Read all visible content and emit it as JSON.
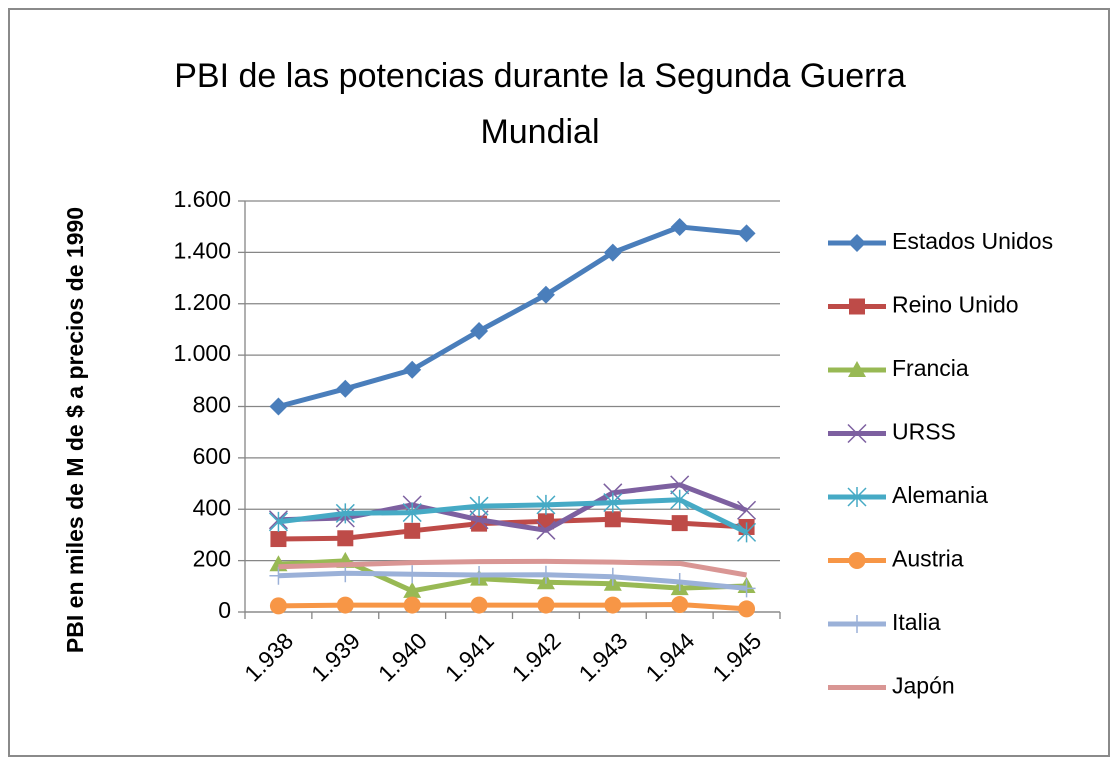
{
  "chart_data": {
    "type": "line",
    "title": "PBI de las potencias durante la Segunda Guerra Mundial",
    "y_label": "PBI en miles de M de $ a precios de 1990",
    "categories": [
      "1.938",
      "1.939",
      "1.940",
      "1.941",
      "1.942",
      "1.943",
      "1.944",
      "1.945"
    ],
    "ylim": [
      0,
      1600
    ],
    "yticks": [
      0,
      200,
      400,
      600,
      800,
      {
        "value": 1000,
        "label": "1.000"
      },
      {
        "value": 1200,
        "label": "1.200"
      },
      {
        "value": 1400,
        "label": "1.400"
      },
      {
        "value": 1600,
        "label": "1.600"
      }
    ],
    "grid": true,
    "legend": "right",
    "series": [
      {
        "name": "Estados Unidos",
        "color": "#4a7ebb",
        "marker": "diamond",
        "values": [
          800,
          869,
          943,
          1094,
          1235,
          1399,
          1499,
          1474
        ]
      },
      {
        "name": "Reino Unido",
        "color": "#be4b48",
        "marker": "square",
        "values": [
          284,
          287,
          316,
          344,
          353,
          361,
          346,
          331
        ]
      },
      {
        "name": "Francia",
        "color": "#98b954",
        "marker": "triangle",
        "values": [
          186,
          199,
          82,
          130,
          116,
          110,
          93,
          101
        ]
      },
      {
        "name": "URSS",
        "color": "#7d60a0",
        "marker": "x",
        "values": [
          359,
          366,
          417,
          359,
          318,
          464,
          495,
          396
        ]
      },
      {
        "name": "Alemania",
        "color": "#46aac5",
        "marker": "star",
        "values": [
          351,
          384,
          387,
          412,
          417,
          426,
          437,
          310
        ]
      },
      {
        "name": "Austria",
        "color": "#f79646",
        "marker": "circle",
        "values": [
          24,
          27,
          27,
          27,
          27,
          27,
          29,
          12
        ]
      },
      {
        "name": "Italia",
        "color": "#9bb1d8",
        "marker": "plus",
        "values": [
          141,
          151,
          147,
          144,
          145,
          137,
          117,
          92
        ]
      },
      {
        "name": "Japón",
        "color": "#d99694",
        "marker": "none",
        "values": [
          176,
          184,
          192,
          196,
          197,
          194,
          189,
          144
        ]
      }
    ]
  }
}
